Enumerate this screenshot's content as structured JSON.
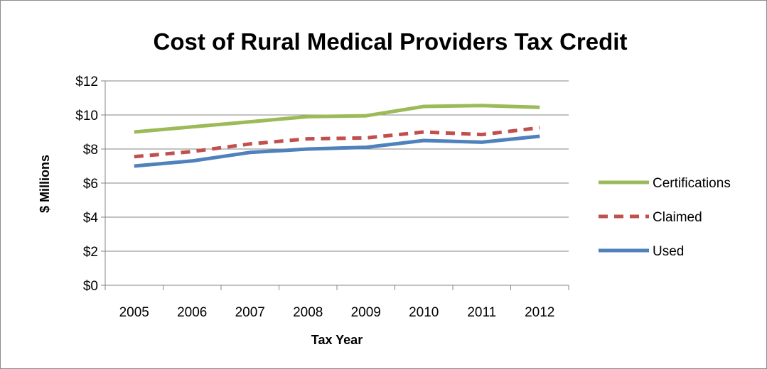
{
  "chart_data": {
    "type": "line",
    "title": "Cost of Rural Medical Providers Tax Credit",
    "xlabel": "Tax Year",
    "ylabel": "$ Millions",
    "categories": [
      "2005",
      "2006",
      "2007",
      "2008",
      "2009",
      "2010",
      "2011",
      "2012"
    ],
    "ylim": [
      0,
      12
    ],
    "yticks": [
      0,
      2,
      4,
      6,
      8,
      10,
      12
    ],
    "ytick_labels": [
      "$0",
      "$2",
      "$4",
      "$6",
      "$8",
      "$10",
      "$12"
    ],
    "grid": true,
    "legend_position": "right",
    "series": [
      {
        "name": "Certifications",
        "color": "#9BBB59",
        "dash": "solid",
        "values": [
          9.0,
          9.3,
          9.6,
          9.9,
          9.95,
          10.5,
          10.55,
          10.45
        ]
      },
      {
        "name": "Claimed",
        "color": "#C0504D",
        "dash": "dashed",
        "values": [
          7.55,
          7.85,
          8.3,
          8.6,
          8.65,
          9.0,
          8.85,
          9.25
        ]
      },
      {
        "name": "Used",
        "color": "#4F81BD",
        "dash": "solid",
        "values": [
          7.0,
          7.3,
          7.8,
          8.0,
          8.1,
          8.5,
          8.4,
          8.75
        ]
      }
    ]
  }
}
